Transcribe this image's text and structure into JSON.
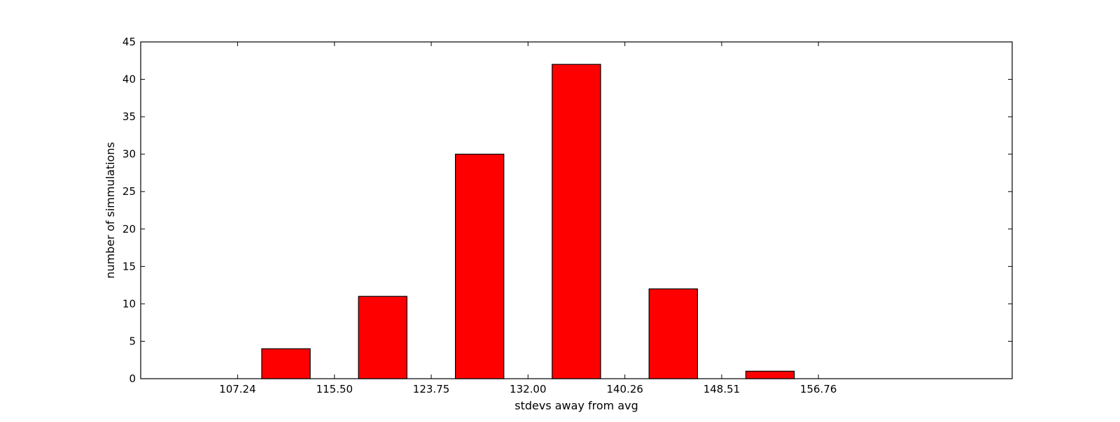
{
  "chart_data": {
    "type": "bar",
    "xlabel": "stdevs away from avg",
    "ylabel": "number of simmulations",
    "xlim": [
      98.98,
      173.28
    ],
    "ylim": [
      0,
      45
    ],
    "x_ticks": [
      "107.24",
      "115.50",
      "123.75",
      "132.00",
      "140.26",
      "148.51",
      "156.76"
    ],
    "x_tick_values": [
      107.24,
      115.5,
      123.75,
      132.0,
      140.26,
      148.51,
      156.76
    ],
    "y_ticks": [
      0,
      5,
      10,
      15,
      20,
      25,
      30,
      35,
      40,
      45
    ],
    "bar_width": 4.13,
    "bar_starts": [
      101.05,
      109.3,
      117.55,
      125.81,
      134.06,
      142.32,
      150.57
    ],
    "values": [
      0,
      4,
      11,
      30,
      42,
      12,
      1
    ],
    "grid": false,
    "bar_color": "#ff0000",
    "edge_color": "#000000"
  }
}
